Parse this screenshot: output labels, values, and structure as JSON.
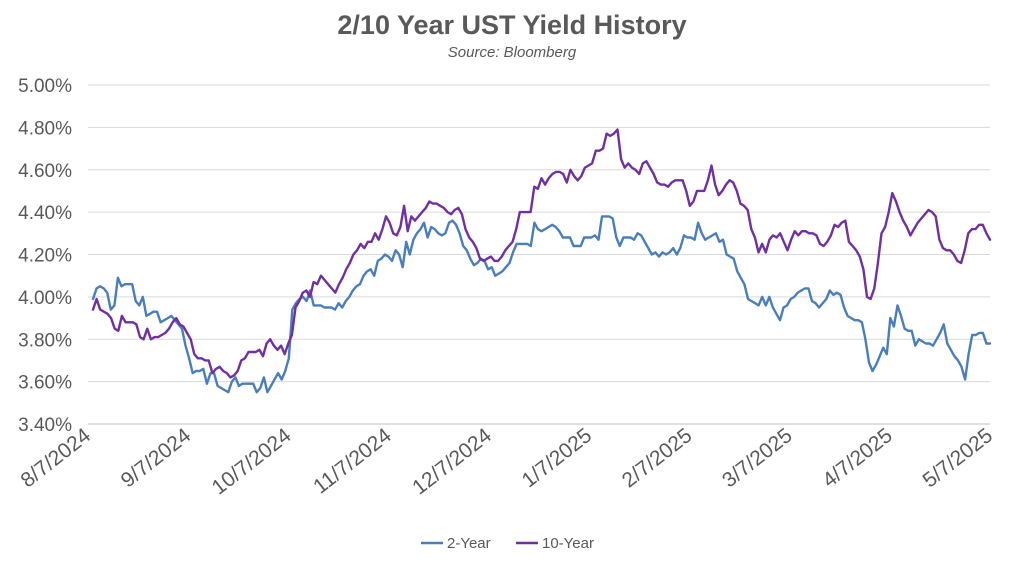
{
  "chart_data": {
    "type": "line",
    "title": "2/10 Year UST Yield History",
    "subtitle": "Source: Bloomberg",
    "ylim": [
      3.4,
      5.0
    ],
    "yticks": [
      "3.40%",
      "3.60%",
      "3.80%",
      "4.00%",
      "4.20%",
      "4.40%",
      "4.60%",
      "4.80%",
      "5.00%"
    ],
    "xticks": [
      "8/7/2024",
      "9/7/2024",
      "10/7/2024",
      "11/7/2024",
      "12/7/2024",
      "1/7/2025",
      "2/7/2025",
      "3/7/2025",
      "4/7/2025",
      "5/7/2025"
    ],
    "grid": "horizontal",
    "legend_position": "bottom",
    "series": [
      {
        "name": "2-Year",
        "color": "#4a7ebb",
        "values": [
          3.99,
          4.04,
          4.05,
          4.04,
          4.02,
          3.94,
          3.96,
          4.09,
          4.05,
          4.06,
          4.06,
          4.06,
          3.98,
          3.96,
          4.0,
          3.91,
          3.92,
          3.93,
          3.93,
          3.88,
          3.89,
          3.9,
          3.91,
          3.89,
          3.87,
          3.85,
          3.77,
          3.71,
          3.64,
          3.65,
          3.65,
          3.66,
          3.59,
          3.64,
          3.64,
          3.58,
          3.57,
          3.56,
          3.55,
          3.6,
          3.62,
          3.58,
          3.59,
          3.59,
          3.59,
          3.59,
          3.55,
          3.57,
          3.62,
          3.55,
          3.58,
          3.61,
          3.64,
          3.61,
          3.65,
          3.71,
          3.94,
          3.97,
          3.99,
          4.0,
          3.98,
          4.03,
          3.96,
          3.96,
          3.96,
          3.95,
          3.95,
          3.95,
          3.94,
          3.97,
          3.95,
          3.98,
          4.0,
          4.03,
          4.05,
          4.06,
          4.1,
          4.12,
          4.13,
          4.1,
          4.17,
          4.18,
          4.2,
          4.19,
          4.17,
          4.22,
          4.2,
          4.14,
          4.26,
          4.2,
          4.27,
          4.3,
          4.32,
          4.35,
          4.28,
          4.33,
          4.32,
          4.3,
          4.29,
          4.3,
          4.35,
          4.36,
          4.34,
          4.3,
          4.24,
          4.22,
          4.18,
          4.15,
          4.16,
          4.18,
          4.17,
          4.13,
          4.14,
          4.1,
          4.11,
          4.12,
          4.14,
          4.16,
          4.21,
          4.25,
          4.25,
          4.25,
          4.25,
          4.24,
          4.35,
          4.32,
          4.31,
          4.32,
          4.33,
          4.34,
          4.33,
          4.31,
          4.28,
          4.28,
          4.28,
          4.24,
          4.24,
          4.24,
          4.28,
          4.28,
          4.28,
          4.29,
          4.27,
          4.38,
          4.38,
          4.38,
          4.37,
          4.28,
          4.24,
          4.28,
          4.28,
          4.28,
          4.27,
          4.3,
          4.29,
          4.26,
          4.23,
          4.2,
          4.21,
          4.19,
          4.21,
          4.2,
          4.21,
          4.23,
          4.2,
          4.23,
          4.29,
          4.28,
          4.28,
          4.27,
          4.35,
          4.3,
          4.27,
          4.28,
          4.29,
          4.3,
          4.26,
          4.27,
          4.2,
          4.19,
          4.18,
          4.12,
          4.09,
          4.06,
          3.99,
          3.98,
          3.97,
          3.96,
          4.0,
          3.96,
          4.0,
          3.95,
          3.92,
          3.89,
          3.95,
          3.96,
          3.99,
          4.0,
          4.02,
          4.03,
          4.04,
          4.04,
          3.98,
          3.97,
          3.95,
          3.97,
          3.99,
          4.03,
          4.01,
          4.02,
          4.01,
          3.95,
          3.91,
          3.9,
          3.89,
          3.89,
          3.88,
          3.8,
          3.69,
          3.65,
          3.68,
          3.72,
          3.76,
          3.73,
          3.9,
          3.86,
          3.96,
          3.91,
          3.85,
          3.84,
          3.84,
          3.77,
          3.8,
          3.79,
          3.78,
          3.78,
          3.77,
          3.8,
          3.83,
          3.87,
          3.78,
          3.75,
          3.72,
          3.7,
          3.67,
          3.61,
          3.73,
          3.82,
          3.82,
          3.83,
          3.83,
          3.78,
          3.78
        ]
      },
      {
        "name": "10-Year",
        "color": "#7030a0",
        "values": [
          3.94,
          3.99,
          3.94,
          3.93,
          3.92,
          3.9,
          3.85,
          3.84,
          3.91,
          3.88,
          3.88,
          3.88,
          3.87,
          3.81,
          3.8,
          3.85,
          3.8,
          3.81,
          3.81,
          3.82,
          3.83,
          3.85,
          3.88,
          3.9,
          3.87,
          3.86,
          3.83,
          3.8,
          3.73,
          3.71,
          3.71,
          3.7,
          3.7,
          3.64,
          3.66,
          3.67,
          3.65,
          3.64,
          3.62,
          3.63,
          3.65,
          3.7,
          3.71,
          3.74,
          3.74,
          3.74,
          3.75,
          3.72,
          3.78,
          3.8,
          3.77,
          3.75,
          3.77,
          3.73,
          3.78,
          3.82,
          3.95,
          3.98,
          4.02,
          4.03,
          4.0,
          4.07,
          4.06,
          4.1,
          4.08,
          4.06,
          4.04,
          4.02,
          4.06,
          4.09,
          4.13,
          4.16,
          4.2,
          4.22,
          4.25,
          4.23,
          4.26,
          4.26,
          4.3,
          4.27,
          4.32,
          4.38,
          4.35,
          4.3,
          4.29,
          4.33,
          4.43,
          4.31,
          4.38,
          4.36,
          4.38,
          4.4,
          4.42,
          4.45,
          4.44,
          4.44,
          4.43,
          4.42,
          4.4,
          4.39,
          4.41,
          4.42,
          4.39,
          4.32,
          4.28,
          4.26,
          4.23,
          4.18,
          4.17,
          4.18,
          4.19,
          4.17,
          4.17,
          4.19,
          4.22,
          4.24,
          4.26,
          4.32,
          4.4,
          4.4,
          4.4,
          4.4,
          4.52,
          4.51,
          4.56,
          4.53,
          4.56,
          4.58,
          4.59,
          4.59,
          4.58,
          4.54,
          4.6,
          4.57,
          4.55,
          4.57,
          4.61,
          4.62,
          4.63,
          4.69,
          4.69,
          4.7,
          4.77,
          4.76,
          4.77,
          4.79,
          4.65,
          4.61,
          4.63,
          4.61,
          4.6,
          4.58,
          4.63,
          4.64,
          4.61,
          4.58,
          4.54,
          4.53,
          4.53,
          4.52,
          4.54,
          4.55,
          4.55,
          4.55,
          4.5,
          4.43,
          4.45,
          4.5,
          4.5,
          4.5,
          4.55,
          4.62,
          4.53,
          4.48,
          4.5,
          4.53,
          4.55,
          4.54,
          4.5,
          4.44,
          4.43,
          4.41,
          4.32,
          4.28,
          4.21,
          4.25,
          4.21,
          4.27,
          4.29,
          4.28,
          4.3,
          4.26,
          4.22,
          4.27,
          4.31,
          4.29,
          4.31,
          4.31,
          4.3,
          4.3,
          4.29,
          4.25,
          4.24,
          4.26,
          4.29,
          4.34,
          4.33,
          4.35,
          4.36,
          4.26,
          4.24,
          4.22,
          4.19,
          4.13,
          4.0,
          3.99,
          4.04,
          4.16,
          4.3,
          4.33,
          4.4,
          4.49,
          4.45,
          4.4,
          4.36,
          4.33,
          4.29,
          4.32,
          4.35,
          4.37,
          4.39,
          4.41,
          4.4,
          4.38,
          4.27,
          4.23,
          4.22,
          4.22,
          4.2,
          4.17,
          4.16,
          4.22,
          4.3,
          4.32,
          4.32,
          4.34,
          4.34,
          4.3,
          4.27
        ]
      }
    ]
  }
}
